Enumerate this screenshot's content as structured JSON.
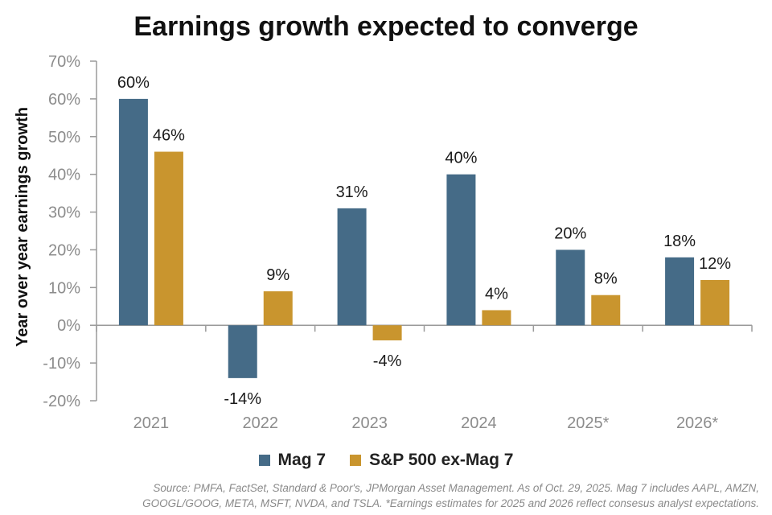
{
  "chart_data": {
    "type": "bar",
    "title": "Earnings growth expected to converge",
    "ylabel": "Year over year earnings growth",
    "xlabel": "",
    "categories": [
      "2021",
      "2022",
      "2023",
      "2024",
      "2025*",
      "2026*"
    ],
    "series": [
      {
        "name": "Mag 7",
        "color": "#456b87",
        "values": [
          60,
          -14,
          31,
          40,
          20,
          18
        ],
        "labels": [
          "60%",
          "-14%",
          "31%",
          "40%",
          "20%",
          "18%"
        ]
      },
      {
        "name": "S&P 500 ex-Mag 7",
        "color": "#c9952e",
        "values": [
          46,
          9,
          -4,
          4,
          8,
          12
        ],
        "labels": [
          "46%",
          "9%",
          "-4%",
          "4%",
          "8%",
          "12%"
        ]
      }
    ],
    "ylim": [
      -20,
      70
    ],
    "yticks": [
      70,
      60,
      50,
      40,
      30,
      20,
      10,
      0,
      -10,
      -20
    ],
    "ytick_labels": [
      "70%",
      "60%",
      "50%",
      "40%",
      "30%",
      "20%",
      "10%",
      "0%",
      "-10%",
      "-20%"
    ],
    "grid": false,
    "legend_position": "bottom"
  },
  "source_note": {
    "line1": "Source: PMFA, FactSet, Standard & Poor's, JPMorgan Asset Management. As of Oct. 29, 2025. Mag 7 includes AAPL, AMZN,",
    "line2": "GOOGL/GOOG, META, MSFT, NVDA, and TSLA. *Earnings estimates for 2025 and 2026 reflect consesus analyst expectations."
  }
}
